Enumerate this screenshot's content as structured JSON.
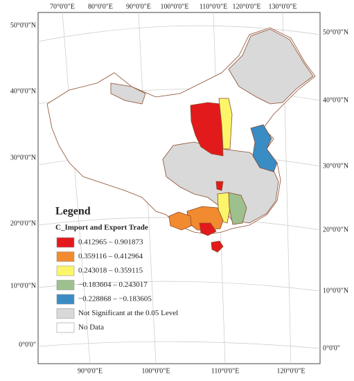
{
  "map": {
    "top_labels": [
      "70°0'0\"E",
      "80°0'0\"E",
      "90°0'0\"E",
      "100°0'0\"E",
      "110°0'0\"E",
      "120°0'0\"E",
      "130°0'0\"E"
    ],
    "bottom_labels": [
      "90°0'0\"E",
      "100°0'0\"E",
      "110°0'0\"E",
      "120°0'0\"E"
    ],
    "left_labels": [
      "50°0'0\"N",
      "40°0'0\"N",
      "30°0'0\"N",
      "20°0'0\"N",
      "10°0'0\"N",
      "0°0'0\""
    ],
    "right_labels": [
      "50°0'0\"N",
      "40°0'0\"N",
      "30°0'0\"N",
      "20°0'0\"N",
      "10°0'0\"N",
      "0°0'0\""
    ]
  },
  "legend": {
    "title": "Legend",
    "subtitle": "C_Import and Export Trade",
    "items": [
      {
        "label": "0.412965 – 0.901873",
        "color": "#e31a1c"
      },
      {
        "label": "0.359116 – 0.412964",
        "color": "#f28a30"
      },
      {
        "label": "0.243018 – 0.359115",
        "color": "#fbf56a"
      },
      {
        "label": "−0.183604 – 0.243017",
        "color": "#9dc08f"
      },
      {
        "label": "−0.228868 – −0.183605",
        "color": "#3a8cc4"
      },
      {
        "label": "Not Significant at the 0.05 Level",
        "color": "#d9d9d9"
      },
      {
        "label": "No Data",
        "color": "#ffffff"
      }
    ]
  }
}
